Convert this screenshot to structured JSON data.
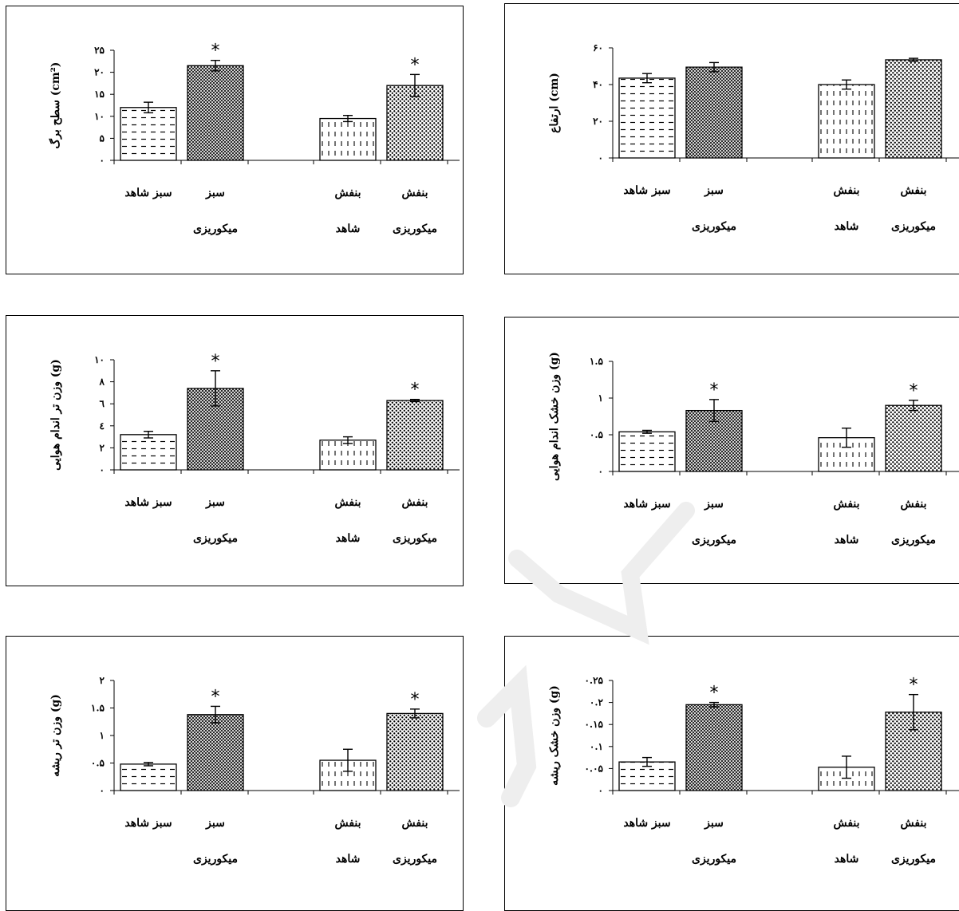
{
  "chart_data": [
    {
      "type": "bar",
      "categories": [
        "سبز شاهد",
        "سبز میکوریزی",
        "بنفش شاهد",
        "بنفش میکوریزی"
      ],
      "category_lines": [
        [
          "سبز شاهد"
        ],
        [
          "سبز",
          "میکوریزی"
        ],
        [
          "بنفش",
          "شاهد"
        ],
        [
          "بنفش",
          "میکوریزی"
        ]
      ],
      "values": [
        12,
        21.5,
        9.5,
        17
      ],
      "errors": [
        1.2,
        1.2,
        0.7,
        2.5
      ],
      "significant": [
        false,
        true,
        false,
        true
      ],
      "star_label": "*",
      "ylabel": "سطح برگ (cm²)",
      "ylim": [
        0,
        25
      ],
      "ticks": [
        0,
        5,
        10,
        15,
        20,
        25
      ],
      "tick_labels": [
        "۰",
        "۵",
        "۱۰",
        "۱۵",
        "۲۰",
        "۲۵"
      ]
    },
    {
      "type": "bar",
      "categories": [
        "سبز شاهد",
        "سبز میکوریزی",
        "بنفش شاهد",
        "بنفش میکوریزی"
      ],
      "category_lines": [
        [
          "سبز شاهد"
        ],
        [
          "سبز",
          "میکوریزی"
        ],
        [
          "بنفش",
          "شاهد"
        ],
        [
          "بنفش",
          "میکوریزی"
        ]
      ],
      "values": [
        43.5,
        49.5,
        40,
        53.5
      ],
      "errors": [
        2.5,
        2.5,
        2.5,
        0.8
      ],
      "significant": [
        false,
        false,
        false,
        false
      ],
      "star_label": "*",
      "ylabel": "ارتفاع (cm)",
      "ylim": [
        0,
        60
      ],
      "ticks": [
        0,
        20,
        40,
        60
      ],
      "tick_labels": [
        "۰",
        "۲۰",
        "۴۰",
        "۶۰"
      ]
    },
    {
      "type": "bar",
      "categories": [
        "سبز شاهد",
        "سبز میکوریزی",
        "بنفش شاهد",
        "بنفش میکوریزی"
      ],
      "category_lines": [
        [
          "سبز شاهد"
        ],
        [
          "سبز",
          "میکوریزی"
        ],
        [
          "بنفش",
          "شاهد"
        ],
        [
          "بنفش",
          "میکوریزی"
        ]
      ],
      "values": [
        3.2,
        7.4,
        2.7,
        6.3
      ],
      "errors": [
        0.3,
        1.6,
        0.3,
        0.1
      ],
      "significant": [
        false,
        true,
        false,
        true
      ],
      "star_label": "*",
      "ylabel": "وزن تر اندام هوایی (g)",
      "ylim": [
        0,
        10
      ],
      "ticks": [
        0,
        2,
        4,
        6,
        8,
        10
      ],
      "tick_labels": [
        "۰",
        "۲",
        "٤",
        "٦",
        "۸",
        "۱۰"
      ]
    },
    {
      "type": "bar",
      "categories": [
        "سبز شاهد",
        "سبز میکوریزی",
        "بنفش شاهد",
        "بنفش میکوریزی"
      ],
      "category_lines": [
        [
          "سبز شاهد"
        ],
        [
          "سبز",
          "میکوریزی"
        ],
        [
          "بنفش",
          "شاهد"
        ],
        [
          "بنفش",
          "میکوریزی"
        ]
      ],
      "values": [
        0.54,
        0.83,
        0.46,
        0.9
      ],
      "errors": [
        0.02,
        0.15,
        0.13,
        0.07
      ],
      "significant": [
        false,
        true,
        false,
        true
      ],
      "star_label": "*",
      "ylabel": "وزن خشک اندام هوایی (g)",
      "ylim": [
        0,
        1.5
      ],
      "ticks": [
        0,
        0.5,
        1,
        1.5
      ],
      "tick_labels": [
        "۰",
        "۰.۵",
        "۱",
        "۱.۵"
      ]
    },
    {
      "type": "bar",
      "categories": [
        "سبز شاهد",
        "سبز میکوریزی",
        "بنفش شاهد",
        "بنفش میکوریزی"
      ],
      "category_lines": [
        [
          "سبز شاهد"
        ],
        [
          "سبز",
          "میکوریزی"
        ],
        [
          "بنفش",
          "شاهد"
        ],
        [
          "بنفش",
          "میکوریزی"
        ]
      ],
      "values": [
        0.48,
        1.38,
        0.55,
        1.4
      ],
      "errors": [
        0.03,
        0.15,
        0.2,
        0.08
      ],
      "significant": [
        false,
        true,
        false,
        true
      ],
      "star_label": "*",
      "ylabel": "وزن تر ریشه (g)",
      "ylim": [
        0,
        2
      ],
      "ticks": [
        0,
        0.5,
        1,
        1.5,
        2
      ],
      "tick_labels": [
        "۰",
        "۰.۵",
        "۱",
        "۱.۵",
        "۲"
      ]
    },
    {
      "type": "bar",
      "categories": [
        "سبز شاهد",
        "سبز میکوریزی",
        "بنفش شاهد",
        "بنفش میکوریزی"
      ],
      "category_lines": [
        [
          "سبز شاهد"
        ],
        [
          "سبز",
          "میکوریزی"
        ],
        [
          "بنفش",
          "شاهد"
        ],
        [
          "بنفش",
          "میکوریزی"
        ]
      ],
      "values": [
        0.065,
        0.195,
        0.053,
        0.178
      ],
      "errors": [
        0.01,
        0.005,
        0.025,
        0.04
      ],
      "significant": [
        false,
        true,
        false,
        true
      ],
      "star_label": "*",
      "ylabel": "وزن خشک ریشه (g)",
      "ylim": [
        0,
        0.25
      ],
      "ticks": [
        0,
        0.05,
        0.1,
        0.15,
        0.2,
        0.25
      ],
      "tick_labels": [
        "۰",
        "۰.۰۵",
        "۰.۱",
        "۰.۱۵",
        "۰.۲",
        "۰.۲۵"
      ]
    }
  ]
}
